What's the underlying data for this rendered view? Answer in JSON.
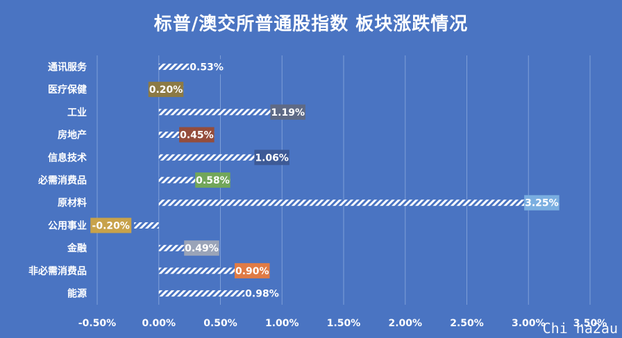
{
  "chart_data": {
    "type": "bar",
    "orientation": "horizontal",
    "title": "标普/澳交所普通股指数 板块涨跌情况",
    "categories": [
      "通讯服务",
      "医疗保健",
      "工业",
      "房地产",
      "信息技术",
      "必需消费品",
      "原材料",
      "公用事业",
      "金融",
      "非必需消费品",
      "能源"
    ],
    "values": [
      0.53,
      0.2,
      1.19,
      0.45,
      1.06,
      0.58,
      3.25,
      -0.2,
      0.49,
      0.9,
      0.98
    ],
    "value_labels": [
      "0.53%",
      "0.20%",
      "1.19%",
      "0.45%",
      "1.06%",
      "0.58%",
      "3.25%",
      "-0.20%",
      "0.49%",
      "0.90%",
      "0.98%"
    ],
    "label_colors": [
      "#4a74c2",
      "#8c7a45",
      "#5e6a86",
      "#944d3c",
      "#3d5a96",
      "#72a65a",
      "#7aaee0",
      "#c8a24a",
      "#9aa4b8",
      "#e07b45",
      "#4a74c2"
    ],
    "xlim": [
      -0.5,
      3.5
    ],
    "xticks": [
      "-0.50%",
      "0.00%",
      "0.50%",
      "1.00%",
      "1.50%",
      "2.00%",
      "2.50%",
      "3.00%",
      "3.50%"
    ],
    "xtick_values": [
      -0.5,
      0,
      0.5,
      1.0,
      1.5,
      2.0,
      2.5,
      3.0,
      3.5
    ],
    "grid": "vertical",
    "xlabel": "",
    "ylabel": ""
  },
  "watermark": "Chi na2au"
}
